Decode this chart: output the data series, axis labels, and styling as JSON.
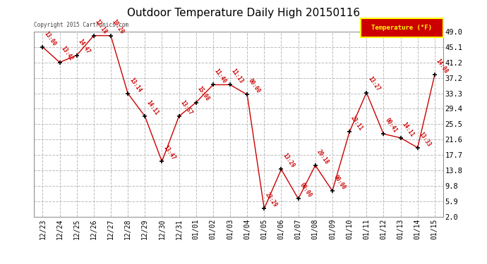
{
  "title": "Outdoor Temperature Daily High 20150116",
  "dates": [
    "12/23",
    "12/24",
    "12/25",
    "12/26",
    "12/27",
    "12/28",
    "12/29",
    "12/30",
    "12/31",
    "01/01",
    "01/02",
    "01/03",
    "01/04",
    "01/05",
    "01/06",
    "01/07",
    "01/08",
    "01/09",
    "01/10",
    "01/11",
    "01/12",
    "01/13",
    "01/14",
    "01/15"
  ],
  "temps": [
    45.1,
    41.2,
    43.0,
    48.0,
    48.0,
    33.3,
    27.5,
    16.0,
    27.5,
    31.0,
    35.5,
    35.5,
    33.0,
    4.0,
    14.0,
    6.5,
    15.0,
    8.5,
    23.5,
    33.5,
    23.0,
    22.0,
    19.5,
    38.0
  ],
  "labels": [
    "13:00",
    "13:42",
    "14:47",
    "12:18",
    "10:20",
    "13:14",
    "14:11",
    "13:47",
    "13:57",
    "15:08",
    "11:40",
    "11:13",
    "00:00",
    "23:29",
    "13:29",
    "00:00",
    "20:18",
    "00:00",
    "23:11",
    "13:27",
    "00:41",
    "14:11",
    "13:33",
    "14:08"
  ],
  "line_color": "#cc0000",
  "marker_color": "#000000",
  "label_color": "#cc0000",
  "background_color": "#ffffff",
  "grid_color": "#bbbbbb",
  "title_fontsize": 11,
  "legend_label": "Temperature (°F)",
  "legend_bg": "#cc0000",
  "legend_text_color": "#ffff00",
  "copyright": "Copyright 2015 Cartronics.com",
  "ylim": [
    2.0,
    49.0
  ],
  "yticks": [
    2.0,
    5.9,
    9.8,
    13.8,
    17.7,
    21.6,
    25.5,
    29.4,
    33.3,
    37.2,
    41.2,
    45.1,
    49.0
  ]
}
